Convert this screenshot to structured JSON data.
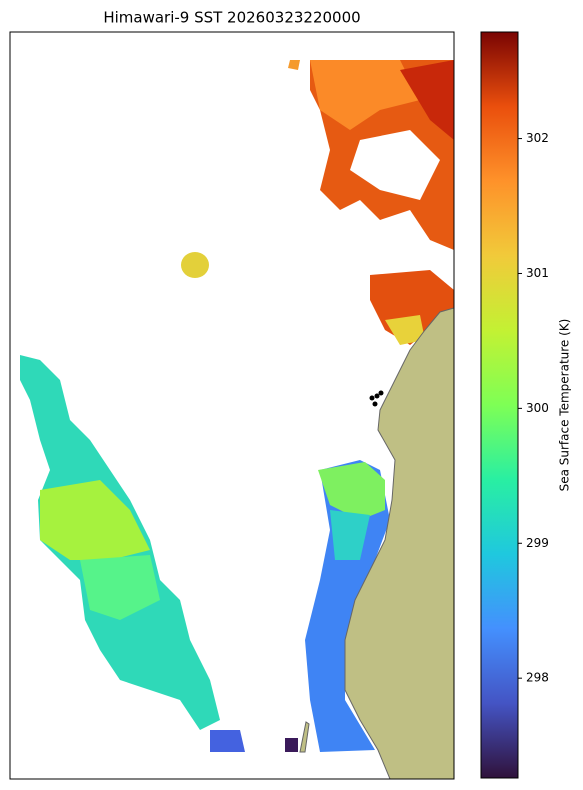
{
  "title": "Himawari-9 SST 20260323220000",
  "colorbar": {
    "label": "Sea Surface Temperature (K)",
    "lim": [
      297.26,
      302.79
    ],
    "ticks": [
      298,
      299,
      300,
      301,
      302
    ]
  }
}
